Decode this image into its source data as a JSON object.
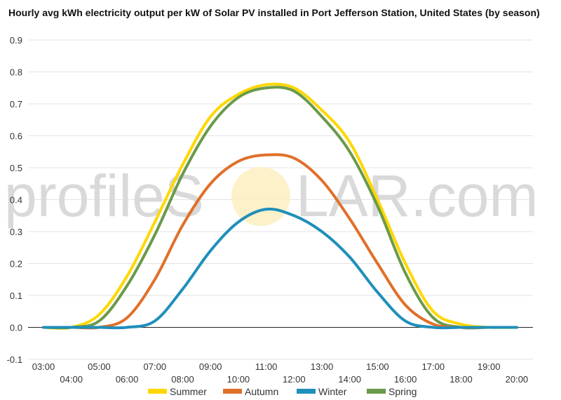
{
  "chart_data": {
    "type": "line",
    "title": "Hourly avg kWh electricity output per kW of Solar PV installed in Port Jefferson Station, United States (by season)",
    "xlabel": "",
    "ylabel": "",
    "ylim": [
      -0.1,
      0.9
    ],
    "yticks": [
      "-0.1",
      "0.0",
      "0.1",
      "0.2",
      "0.3",
      "0.4",
      "0.5",
      "0.6",
      "0.7",
      "0.8",
      "0.9"
    ],
    "x": [
      "03:00",
      "04:00",
      "05:00",
      "06:00",
      "07:00",
      "08:00",
      "09:00",
      "10:00",
      "11:00",
      "12:00",
      "13:00",
      "14:00",
      "15:00",
      "16:00",
      "17:00",
      "18:00",
      "19:00",
      "20:00"
    ],
    "grid": true,
    "legend_position": "bottom",
    "series": [
      {
        "name": "Summer",
        "color": "#ffd700",
        "values": [
          0.0,
          0.0,
          0.04,
          0.16,
          0.33,
          0.51,
          0.66,
          0.73,
          0.76,
          0.75,
          0.68,
          0.58,
          0.4,
          0.2,
          0.05,
          0.01,
          0.0,
          0.0
        ]
      },
      {
        "name": "Autumn",
        "color": "#e0702a",
        "values": [
          0.0,
          0.0,
          0.0,
          0.03,
          0.15,
          0.32,
          0.45,
          0.52,
          0.54,
          0.53,
          0.46,
          0.34,
          0.2,
          0.07,
          0.01,
          0.0,
          0.0,
          0.0
        ]
      },
      {
        "name": "Winter",
        "color": "#1f8fbb",
        "values": [
          0.0,
          0.0,
          0.0,
          0.0,
          0.02,
          0.12,
          0.24,
          0.33,
          0.37,
          0.35,
          0.3,
          0.22,
          0.11,
          0.02,
          0.0,
          0.0,
          0.0,
          0.0
        ]
      },
      {
        "name": "Spring",
        "color": "#6a9a4a",
        "values": [
          0.0,
          0.0,
          0.02,
          0.13,
          0.29,
          0.48,
          0.63,
          0.72,
          0.75,
          0.74,
          0.66,
          0.55,
          0.38,
          0.17,
          0.03,
          0.0,
          0.0,
          0.0
        ]
      }
    ]
  },
  "watermark": {
    "prefix": "profileS",
    "suffix": "LAR.com",
    "sun_color": "#fbeec0"
  }
}
